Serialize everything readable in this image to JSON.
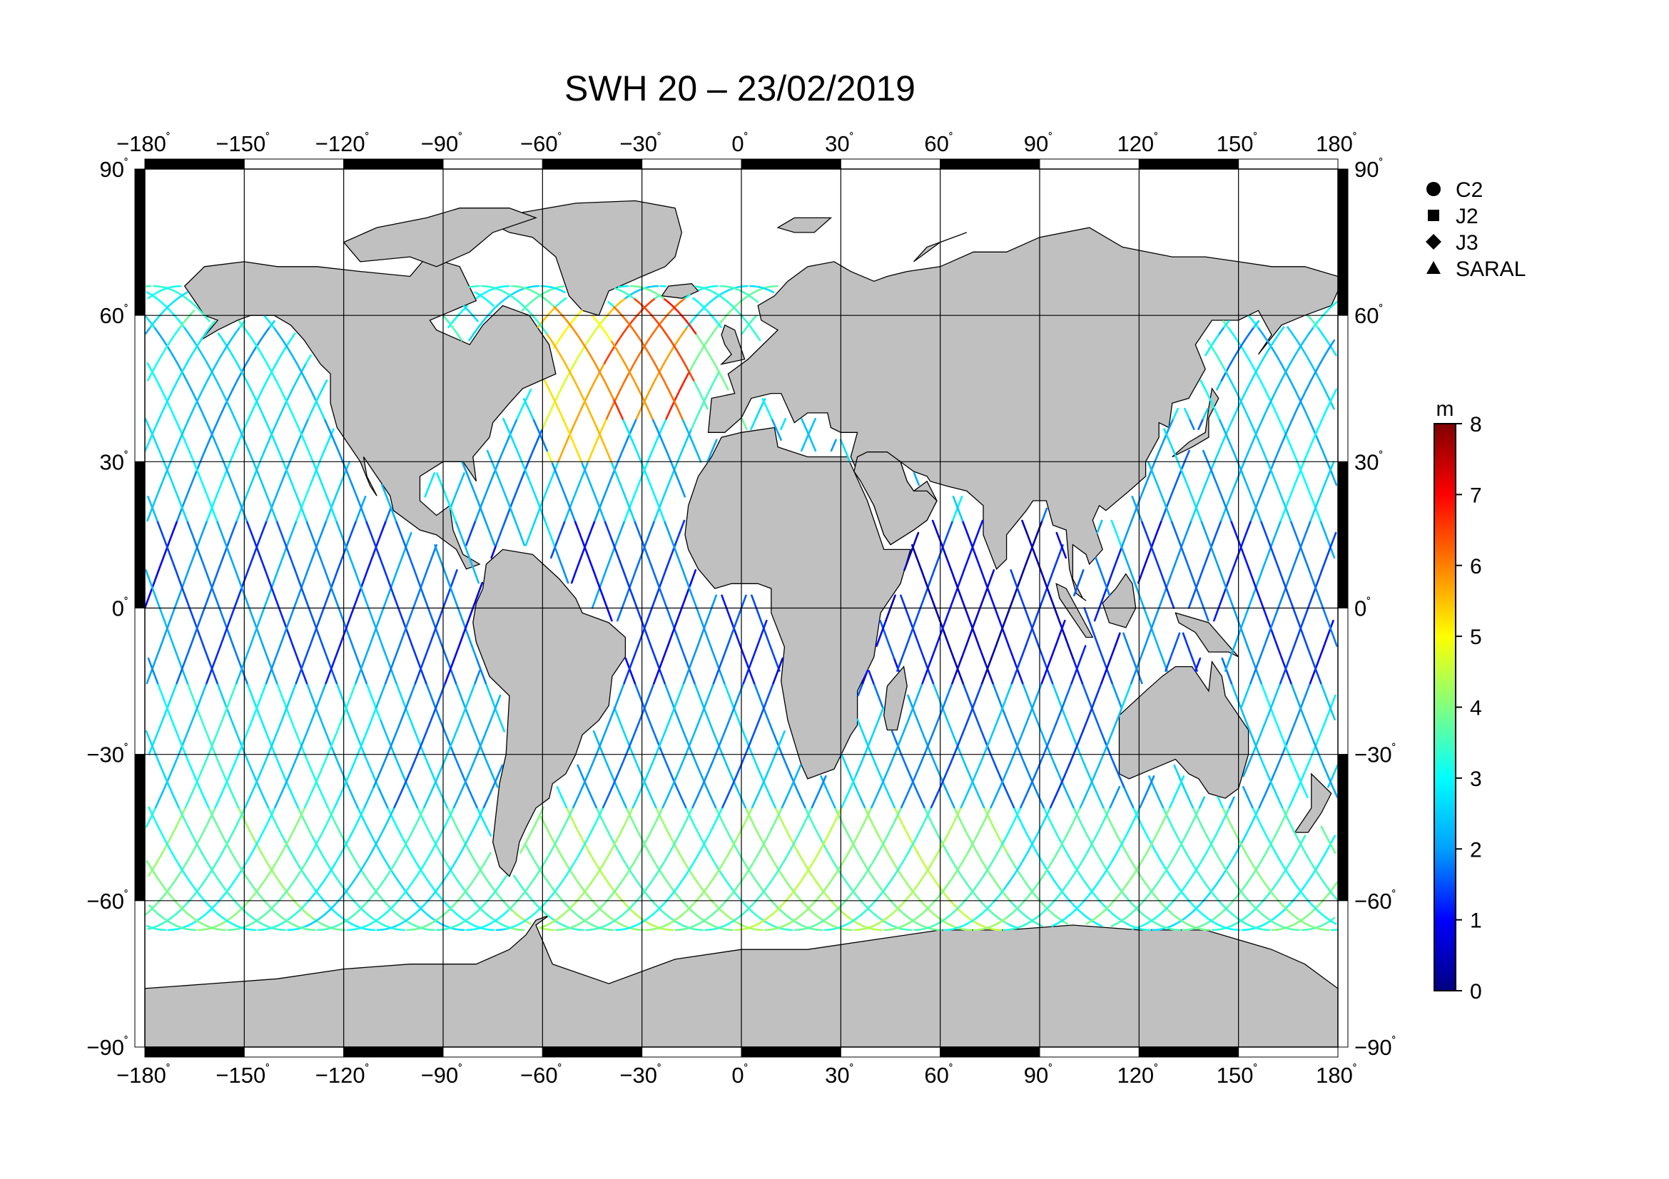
{
  "title": "SWH 20 – 23/02/2019",
  "colors": {
    "land": "#c0c0c0",
    "ocean": "#ffffff",
    "grid": "#000000",
    "frame_dark": "#000000",
    "frame_light": "#ffffff"
  },
  "map": {
    "projection": "equirectangular",
    "lon_range": [
      -180,
      180
    ],
    "lat_range": [
      -90,
      90
    ],
    "lon_ticks": [
      "−180",
      "−150",
      "−120",
      "−90",
      "−60",
      "−30",
      "0",
      "30",
      "60",
      "90",
      "120",
      "150",
      "180"
    ],
    "lat_ticks": [
      "90",
      "60",
      "30",
      "0",
      "−30",
      "−60",
      "−90"
    ],
    "degree_symbol": "˚",
    "grid": true
  },
  "legend": {
    "placement": "top-right",
    "items": [
      {
        "label": "C2",
        "marker": "circle"
      },
      {
        "label": "J2",
        "marker": "square"
      },
      {
        "label": "J3",
        "marker": "diamond"
      },
      {
        "label": "SARAL",
        "marker": "triangle"
      }
    ]
  },
  "colorbar": {
    "unit": "m",
    "min": 0,
    "max": 8,
    "ticks": [
      "0",
      "1",
      "2",
      "3",
      "4",
      "5",
      "6",
      "7",
      "8"
    ],
    "colormap": [
      "#000080",
      "#0000ff",
      "#00a0ff",
      "#00ffff",
      "#80ff80",
      "#ffff00",
      "#ff8000",
      "#ff0000",
      "#800000"
    ]
  },
  "tracks": {
    "variable": "significant wave height",
    "regions": [
      {
        "lon": [
          -180,
          -130
        ],
        "lat": [
          -66,
          -40
        ],
        "swh": 3.6
      },
      {
        "lon": [
          -130,
          -70
        ],
        "lat": [
          -66,
          -40
        ],
        "swh": 3.2
      },
      {
        "lon": [
          -70,
          0
        ],
        "lat": [
          -66,
          -40
        ],
        "swh": 3.8
      },
      {
        "lon": [
          0,
          80
        ],
        "lat": [
          -66,
          -40
        ],
        "swh": 3.9
      },
      {
        "lon": [
          80,
          180
        ],
        "lat": [
          -66,
          -40
        ],
        "swh": 3.4
      },
      {
        "lon": [
          -180,
          -110
        ],
        "lat": [
          -40,
          -15
        ],
        "swh": 2.8
      },
      {
        "lon": [
          -110,
          -75
        ],
        "lat": [
          -40,
          -15
        ],
        "swh": 2.2
      },
      {
        "lon": [
          -50,
          15
        ],
        "lat": [
          -40,
          -15
        ],
        "swh": 2.2
      },
      {
        "lon": [
          35,
          115
        ],
        "lat": [
          -40,
          -15
        ],
        "swh": 2.0
      },
      {
        "lon": [
          155,
          180
        ],
        "lat": [
          -40,
          -15
        ],
        "swh": 2.6
      },
      {
        "lon": [
          -180,
          -80
        ],
        "lat": [
          -15,
          20
        ],
        "swh": 1.7
      },
      {
        "lon": [
          -55,
          -15
        ],
        "lat": [
          -15,
          20
        ],
        "swh": 1.5
      },
      {
        "lon": [
          45,
          100
        ],
        "lat": [
          -15,
          20
        ],
        "swh": 0.9
      },
      {
        "lon": [
          120,
          180
        ],
        "lat": [
          -15,
          20
        ],
        "swh": 1.6
      },
      {
        "lon": [
          -180,
          -130
        ],
        "lat": [
          20,
          58
        ],
        "swh": 2.6
      },
      {
        "lon": [
          145,
          180
        ],
        "lat": [
          20,
          58
        ],
        "swh": 2.4
      },
      {
        "lon": [
          -60,
          -40
        ],
        "lat": [
          30,
          62
        ],
        "swh": 5.4
      },
      {
        "lon": [
          -40,
          -15
        ],
        "lat": [
          40,
          64
        ],
        "swh": 6.2
      },
      {
        "lon": [
          -15,
          5
        ],
        "lat": [
          35,
          63
        ],
        "swh": 3.3
      },
      {
        "lon": [
          -75,
          -60
        ],
        "lat": [
          20,
          40
        ],
        "swh": 2.3
      },
      {
        "lon": [
          -60,
          -20
        ],
        "lat": [
          15,
          30
        ],
        "swh": 2.4
      }
    ]
  }
}
